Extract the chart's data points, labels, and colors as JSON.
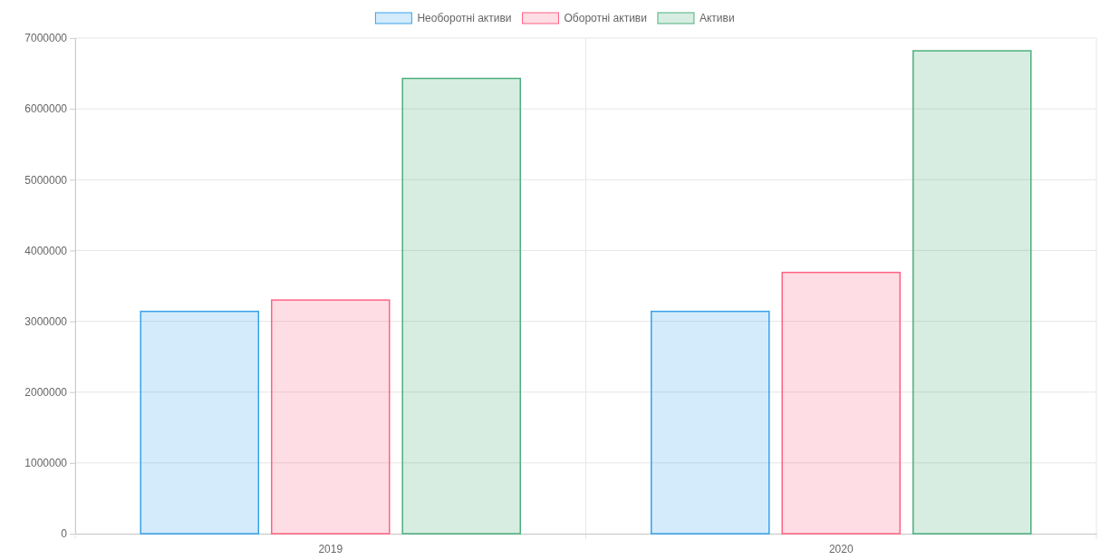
{
  "chart_data": {
    "type": "bar",
    "categories": [
      "2019",
      "2020"
    ],
    "series": [
      {
        "name": "Необоротні активи",
        "color": "#36a2eb",
        "values": [
          3140000,
          3140000
        ]
      },
      {
        "name": "Оборотні активи",
        "color": "#ff6384",
        "values": [
          3300000,
          3690000
        ]
      },
      {
        "name": "Активи",
        "color": "#4caf7d",
        "values": [
          6430000,
          6820000
        ]
      }
    ],
    "ylim": [
      0,
      7000000
    ],
    "yticks": [
      0,
      1000000,
      2000000,
      3000000,
      4000000,
      5000000,
      6000000,
      7000000
    ],
    "grid": true,
    "legend": "top"
  }
}
